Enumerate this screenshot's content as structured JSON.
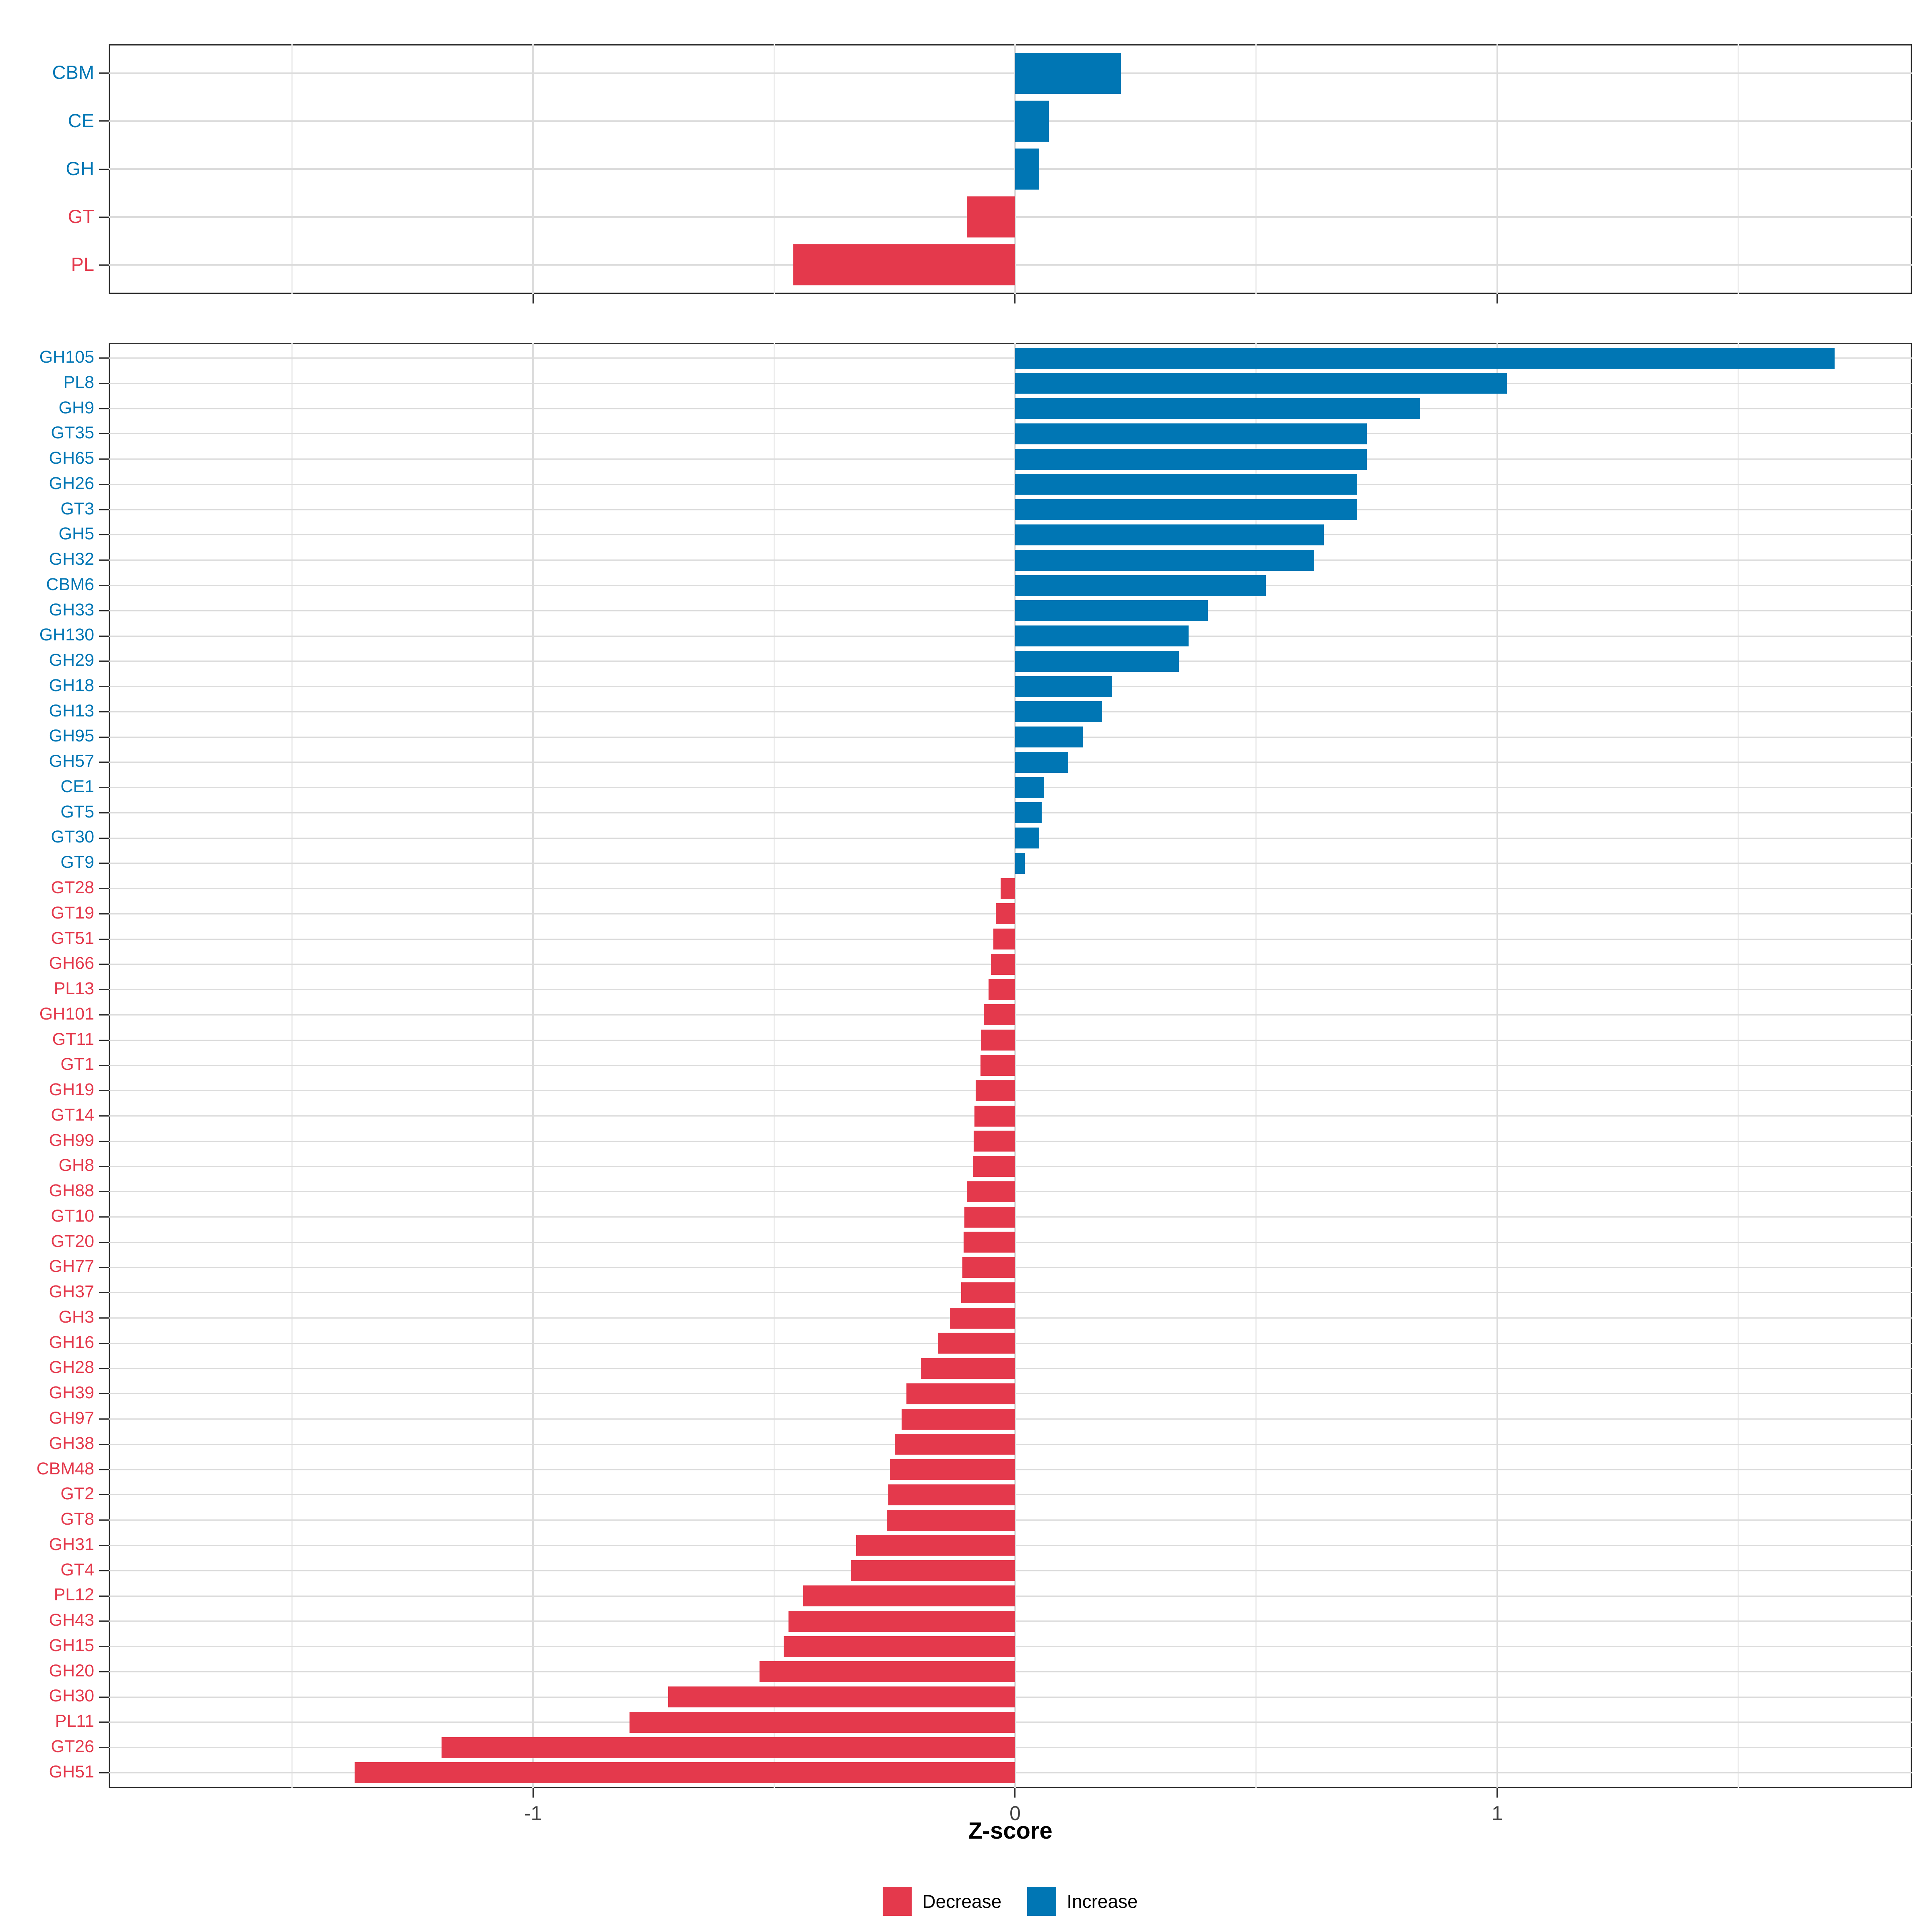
{
  "axis": {
    "label": "Z-score",
    "tick_labels": [
      "-1",
      "0",
      "1"
    ],
    "tick_values": [
      -1,
      0,
      1
    ],
    "minor_values": [
      -1.5,
      -0.5,
      0.5,
      1.5
    ],
    "xmin": -1.88,
    "xmax": 1.86
  },
  "colors": {
    "increase": "#0076B4",
    "decrease": "#E4394C",
    "grid_major": "#DCDCDC",
    "grid_minor": "#EDEDED",
    "panel_border": "#2F2F2F",
    "axis_text": "#404040",
    "title_text": "#000000"
  },
  "legend": {
    "items": [
      {
        "label": "Decrease",
        "color_key": "decrease"
      },
      {
        "label": "Increase",
        "color_key": "increase"
      }
    ]
  },
  "chart_data": [
    {
      "type": "bar",
      "orientation": "horizontal",
      "panel": "top",
      "title": "",
      "xlabel": "Z-score",
      "categories": [
        "CBM",
        "CE",
        "GH",
        "GT",
        "PL"
      ],
      "values": [
        0.22,
        0.07,
        0.05,
        -0.1,
        -0.46
      ],
      "xlim": [
        -1.88,
        1.86
      ],
      "grid": true,
      "legend_position": "none"
    },
    {
      "type": "bar",
      "orientation": "horizontal",
      "panel": "bottom",
      "title": "",
      "xlabel": "Z-score",
      "categories": [
        "GH105",
        "PL8",
        "GH9",
        "GT35",
        "GH65",
        "GH26",
        "GT3",
        "GH5",
        "GH32",
        "CBM6",
        "GH33",
        "GH130",
        "GH29",
        "GH18",
        "GH13",
        "GH95",
        "GH57",
        "CE1",
        "GT5",
        "GT30",
        "GT9",
        "GT28",
        "GT19",
        "GT51",
        "GH66",
        "PL13",
        "GH101",
        "GT11",
        "GT1",
        "GH19",
        "GT14",
        "GH99",
        "GH8",
        "GH88",
        "GT10",
        "GT20",
        "GH77",
        "GH37",
        "GH3",
        "GH16",
        "GH28",
        "GH39",
        "GH97",
        "GH38",
        "CBM48",
        "GT2",
        "GT8",
        "GH31",
        "GT4",
        "PL12",
        "GH43",
        "GH15",
        "GH20",
        "GH30",
        "PL11",
        "GT26",
        "GH51"
      ],
      "values": [
        1.7,
        1.02,
        0.84,
        0.73,
        0.73,
        0.71,
        0.71,
        0.64,
        0.62,
        0.52,
        0.4,
        0.36,
        0.34,
        0.2,
        0.18,
        0.14,
        0.11,
        0.06,
        0.055,
        0.05,
        0.02,
        -0.03,
        -0.04,
        -0.045,
        -0.05,
        -0.055,
        -0.065,
        -0.07,
        -0.072,
        -0.082,
        -0.084,
        -0.086,
        -0.088,
        -0.1,
        -0.105,
        -0.107,
        -0.109,
        -0.112,
        -0.135,
        -0.16,
        -0.195,
        -0.225,
        -0.235,
        -0.25,
        -0.26,
        -0.263,
        -0.266,
        -0.33,
        -0.34,
        -0.44,
        -0.47,
        -0.48,
        -0.53,
        -0.72,
        -0.8,
        -1.19,
        -1.37
      ],
      "xlim": [
        -1.88,
        1.86
      ],
      "grid": true,
      "legend_position": "bottom"
    }
  ]
}
